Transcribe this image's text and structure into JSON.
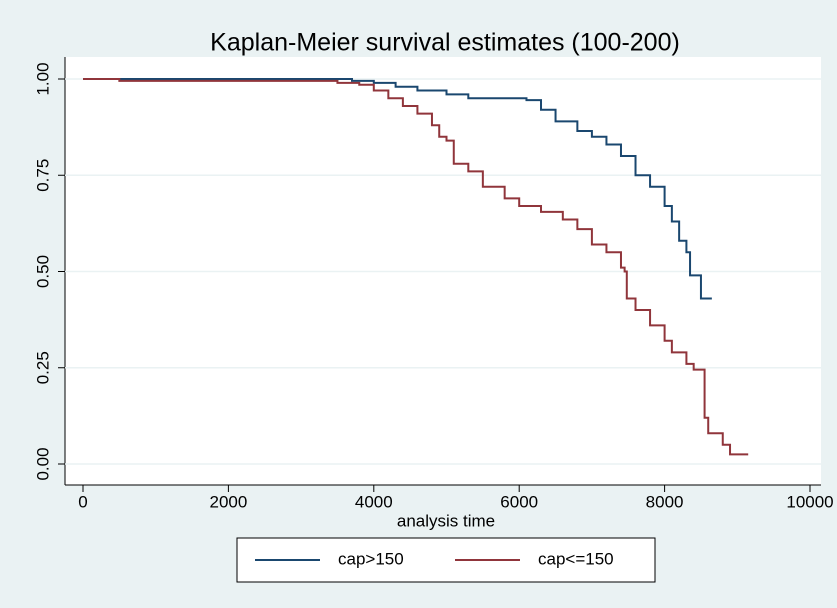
{
  "chart_data": {
    "type": "step",
    "title": "Kaplan-Meier survival estimates (100-200)",
    "x_label": "analysis time",
    "xlim": [
      -200,
      10000
    ],
    "xticks": [
      0,
      2000,
      4000,
      6000,
      8000,
      10000
    ],
    "ylim": [
      -0.04,
      1.06
    ],
    "yticks": [
      {
        "value": 0,
        "label": "0.00"
      },
      {
        "value": 0.25,
        "label": "0.25"
      },
      {
        "value": 0.5,
        "label": "0.50"
      },
      {
        "value": 0.75,
        "label": "0.75"
      },
      {
        "value": 1,
        "label": "1.00"
      }
    ],
    "grid": true,
    "legend": "bottom",
    "series": [
      {
        "name": "cap>150",
        "color": "#1a476f",
        "x": [
          0,
          3400,
          3700,
          4000,
          4300,
          4600,
          5000,
          5300,
          5800,
          6100,
          6300,
          6500,
          6800,
          7000,
          7200,
          7400,
          7600,
          7800,
          8000,
          8100,
          8200,
          8300,
          8350,
          8500,
          8650
        ],
        "values": [
          1.0,
          1.0,
          0.995,
          0.99,
          0.98,
          0.97,
          0.96,
          0.95,
          0.95,
          0.945,
          0.92,
          0.89,
          0.865,
          0.85,
          0.83,
          0.8,
          0.75,
          0.72,
          0.67,
          0.63,
          0.58,
          0.55,
          0.49,
          0.43,
          0.43
        ]
      },
      {
        "name": "cap<=150",
        "color": "#90353b",
        "x": [
          0,
          500,
          3300,
          3500,
          3800,
          4000,
          4200,
          4400,
          4600,
          4800,
          4900,
          5000,
          5100,
          5300,
          5500,
          5800,
          6000,
          6300,
          6600,
          6800,
          7000,
          7200,
          7400,
          7450,
          7480,
          7600,
          7800,
          8000,
          8100,
          8300,
          8400,
          8550,
          8600,
          8800,
          8900,
          9150
        ],
        "values": [
          1.0,
          0.995,
          0.995,
          0.99,
          0.985,
          0.97,
          0.95,
          0.93,
          0.91,
          0.88,
          0.85,
          0.84,
          0.78,
          0.76,
          0.72,
          0.69,
          0.67,
          0.655,
          0.635,
          0.61,
          0.57,
          0.55,
          0.51,
          0.5,
          0.43,
          0.4,
          0.36,
          0.32,
          0.29,
          0.26,
          0.245,
          0.12,
          0.08,
          0.05,
          0.025,
          0.025
        ]
      }
    ]
  }
}
